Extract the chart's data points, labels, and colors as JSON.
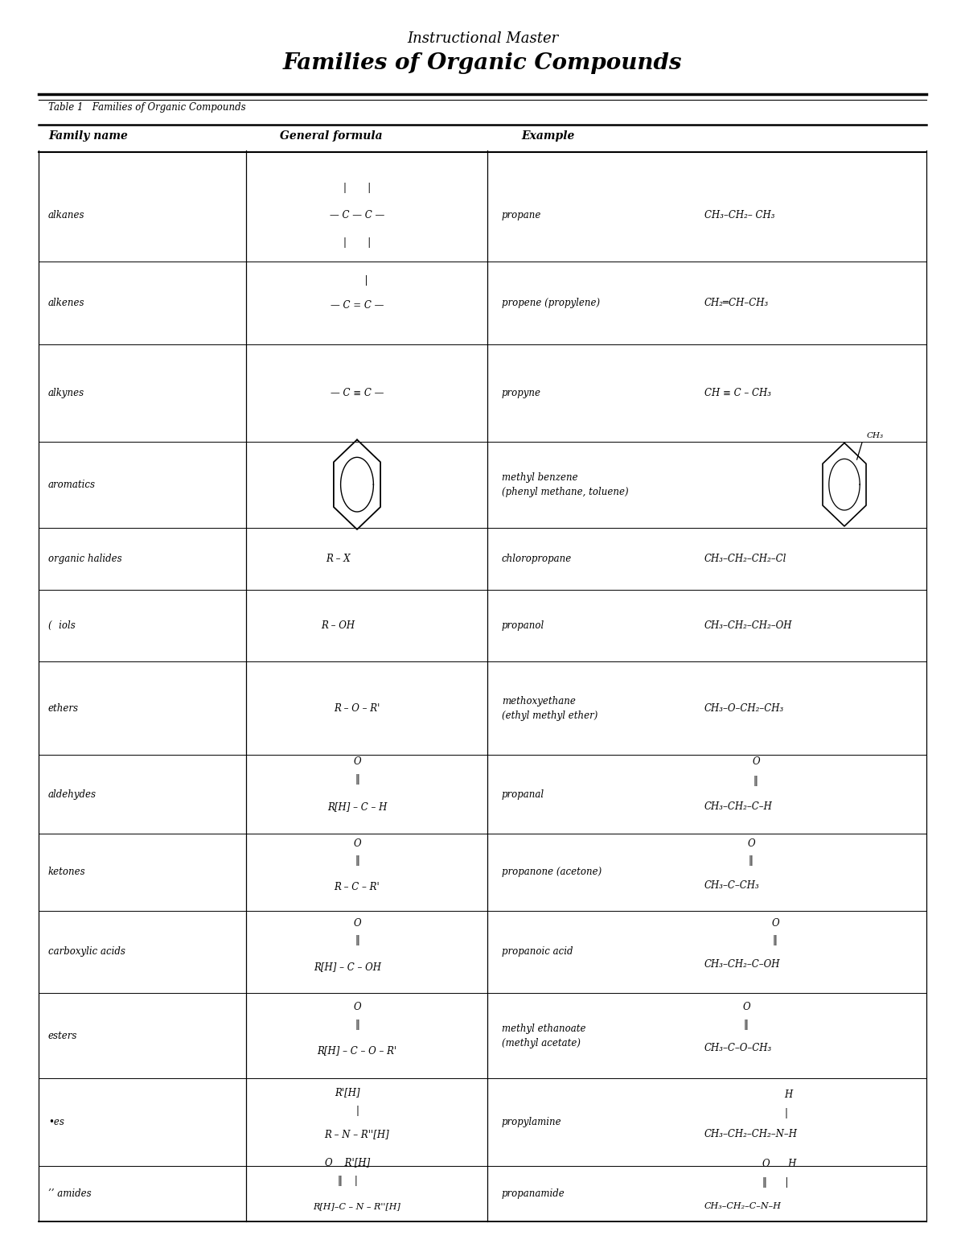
{
  "title1": "Instructional Master",
  "title2": "Families of Organic Compounds",
  "table_label": "Table 1   Families of Organic Compounds",
  "col_headers": [
    "Family name",
    "General formula",
    "Example"
  ],
  "background": "#ffffff",
  "family_names": [
    "alkanes",
    "alkenes",
    "alkynes",
    "aromatics",
    "organic halides",
    "(   iols",
    "ethers",
    "aldehydes",
    "ketones",
    "carboxylic acids",
    "esters",
    "•es",
    "’’ amides"
  ],
  "row_tops": [
    0.864,
    0.79,
    0.723,
    0.645,
    0.576,
    0.526,
    0.468,
    0.393,
    0.33,
    0.268,
    0.202,
    0.133,
    0.063
  ],
  "row_bottoms": [
    0.79,
    0.723,
    0.645,
    0.576,
    0.526,
    0.468,
    0.393,
    0.33,
    0.268,
    0.202,
    0.133,
    0.063,
    0.018
  ]
}
